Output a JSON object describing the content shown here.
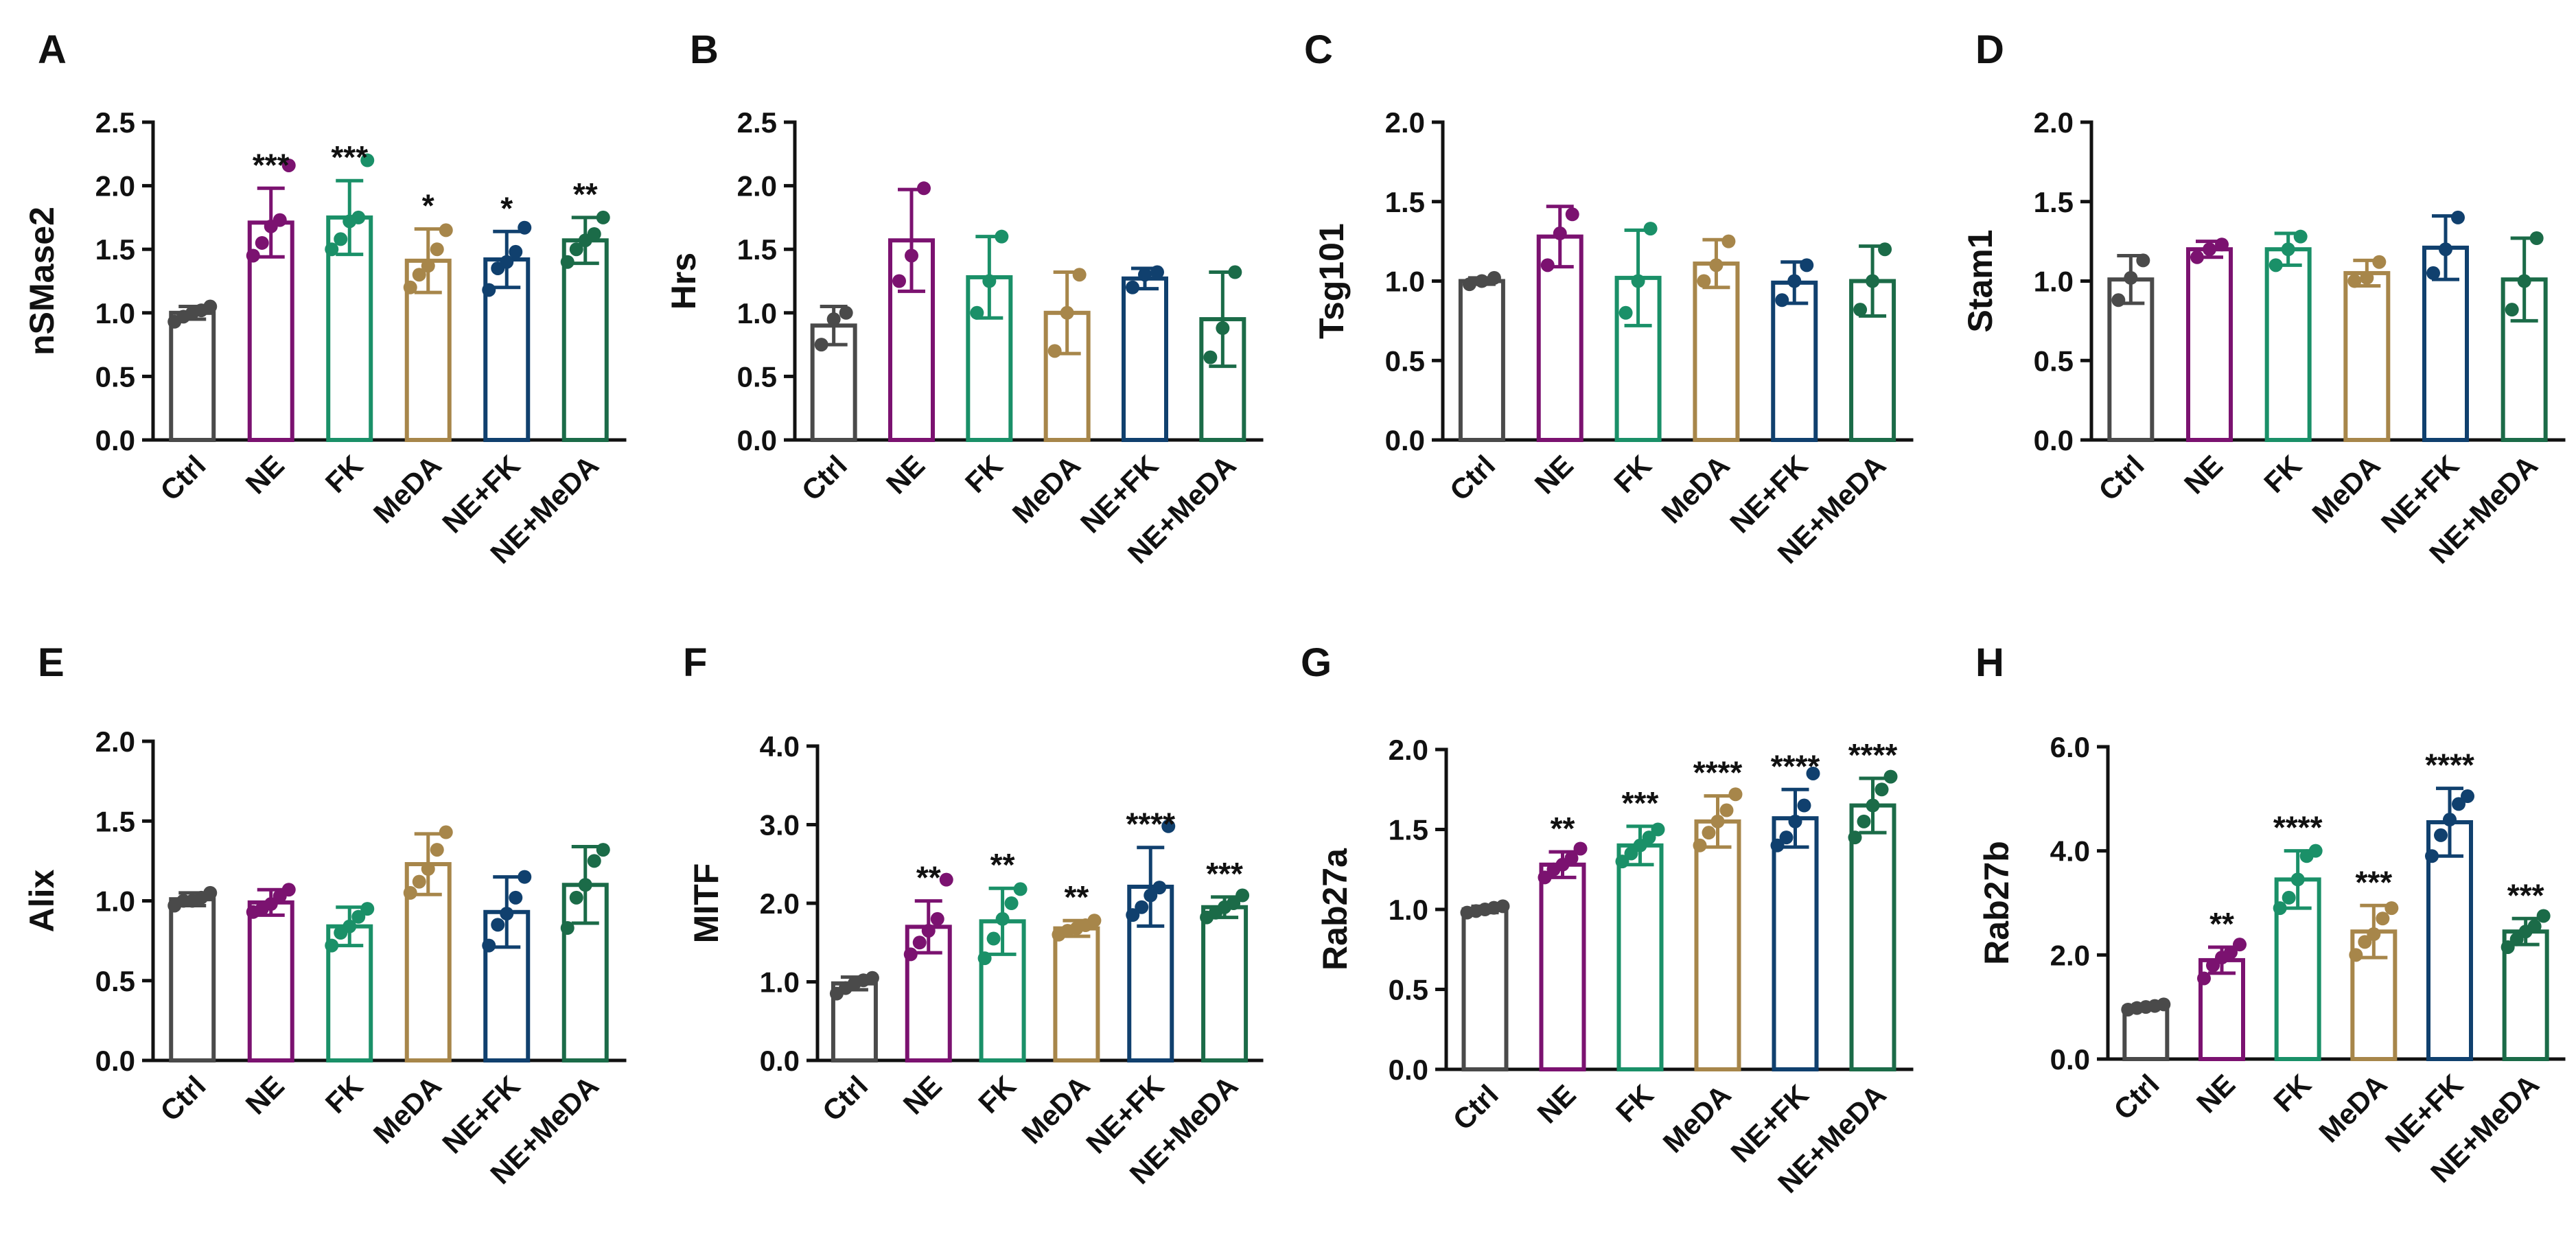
{
  "colors": {
    "Ctrl": "#4a4a4a",
    "NE": "#7b1270",
    "FK": "#1a9068",
    "MeDA": "#a7864a",
    "NE+FK": "#10406e",
    "NE+MeDA": "#1b6b48"
  },
  "chart_data": [
    {
      "panel": "A",
      "type": "bar",
      "ylabel": "nSMase2",
      "ylim": [
        0,
        2.5
      ],
      "ticks": [
        "0.0",
        "0.5",
        "1.0",
        "1.5",
        "2.0",
        "2.5"
      ],
      "categories": [
        "Ctrl",
        "NE",
        "FK",
        "MeDA",
        "NE+FK",
        "NE+MeDA"
      ],
      "values": [
        1.0,
        1.71,
        1.75,
        1.41,
        1.42,
        1.57
      ],
      "errors": [
        0.05,
        0.27,
        0.29,
        0.25,
        0.22,
        0.18
      ],
      "points": [
        [
          0.93,
          0.97,
          1.0,
          1.02,
          1.05
        ],
        [
          1.45,
          1.55,
          1.68,
          1.73,
          2.16
        ],
        [
          1.5,
          1.58,
          1.72,
          1.75,
          2.2
        ],
        [
          1.2,
          1.3,
          1.37,
          1.5,
          1.65
        ],
        [
          1.18,
          1.35,
          1.4,
          1.48,
          1.67
        ],
        [
          1.4,
          1.5,
          1.57,
          1.62,
          1.75
        ]
      ],
      "significance": [
        "",
        "***",
        "***",
        "*",
        "*",
        "**"
      ]
    },
    {
      "panel": "B",
      "type": "bar",
      "ylabel": "Hrs",
      "ylim": [
        0,
        2.5
      ],
      "ticks": [
        "0.0",
        "0.5",
        "1.0",
        "1.5",
        "2.0",
        "2.5"
      ],
      "categories": [
        "Ctrl",
        "NE",
        "FK",
        "MeDA",
        "NE+FK",
        "NE+MeDA"
      ],
      "values": [
        0.9,
        1.57,
        1.28,
        1.0,
        1.27,
        0.95
      ],
      "errors": [
        0.15,
        0.4,
        0.32,
        0.32,
        0.08,
        0.37
      ],
      "points": [
        [
          0.75,
          0.95,
          1.0
        ],
        [
          1.25,
          1.45,
          1.98
        ],
        [
          1.0,
          1.25,
          1.6
        ],
        [
          0.7,
          1.0,
          1.3
        ],
        [
          1.2,
          1.3,
          1.32
        ],
        [
          0.65,
          0.88,
          1.32
        ]
      ],
      "significance": [
        "",
        "",
        "",
        "",
        "",
        ""
      ]
    },
    {
      "panel": "C",
      "type": "bar",
      "ylabel": "Tsg101",
      "ylim": [
        0,
        2.0
      ],
      "ticks": [
        "0.0",
        "0.5",
        "1.0",
        "1.5",
        "2.0"
      ],
      "categories": [
        "Ctrl",
        "NE",
        "FK",
        "MeDA",
        "NE+FK",
        "NE+MeDA"
      ],
      "values": [
        1.0,
        1.28,
        1.02,
        1.11,
        0.99,
        1.0
      ],
      "errors": [
        0.02,
        0.19,
        0.3,
        0.15,
        0.13,
        0.22
      ],
      "points": [
        [
          0.98,
          1.0,
          1.02
        ],
        [
          1.1,
          1.3,
          1.42
        ],
        [
          0.8,
          1.0,
          1.33
        ],
        [
          1.0,
          1.1,
          1.25
        ],
        [
          0.88,
          1.0,
          1.1
        ],
        [
          0.82,
          1.0,
          1.2
        ]
      ],
      "significance": [
        "",
        "",
        "",
        "",
        "",
        ""
      ]
    },
    {
      "panel": "D",
      "type": "bar",
      "ylabel": "Stam1",
      "ylim": [
        0,
        2.0
      ],
      "ticks": [
        "0.0",
        "0.5",
        "1.0",
        "1.5",
        "2.0"
      ],
      "categories": [
        "Ctrl",
        "NE",
        "FK",
        "MeDA",
        "NE+FK",
        "NE+MeDA"
      ],
      "values": [
        1.01,
        1.2,
        1.2,
        1.05,
        1.21,
        1.01
      ],
      "errors": [
        0.15,
        0.05,
        0.1,
        0.08,
        0.2,
        0.26
      ],
      "points": [
        [
          0.88,
          1.02,
          1.13
        ],
        [
          1.15,
          1.2,
          1.23
        ],
        [
          1.1,
          1.2,
          1.28
        ],
        [
          1.0,
          1.02,
          1.12
        ],
        [
          1.05,
          1.2,
          1.4
        ],
        [
          0.82,
          1.0,
          1.27
        ]
      ],
      "significance": [
        "",
        "",
        "",
        "",
        "",
        ""
      ]
    },
    {
      "panel": "E",
      "type": "bar",
      "ylabel": "Alix",
      "ylim": [
        0,
        2.0
      ],
      "ticks": [
        "0.0",
        "0.5",
        "1.0",
        "1.5",
        "2.0"
      ],
      "categories": [
        "Ctrl",
        "NE",
        "FK",
        "MeDA",
        "NE+FK",
        "NE+MeDA"
      ],
      "values": [
        1.01,
        0.99,
        0.84,
        1.23,
        0.93,
        1.1
      ],
      "errors": [
        0.04,
        0.08,
        0.12,
        0.19,
        0.22,
        0.24
      ],
      "points": [
        [
          0.97,
          1.0,
          1.0,
          1.02,
          1.05
        ],
        [
          0.93,
          0.95,
          0.98,
          1.03,
          1.07
        ],
        [
          0.72,
          0.8,
          0.84,
          0.9,
          0.95
        ],
        [
          1.05,
          1.12,
          1.2,
          1.32,
          1.43
        ],
        [
          0.72,
          0.85,
          0.92,
          1.02,
          1.15
        ],
        [
          0.83,
          1.02,
          1.1,
          1.25,
          1.32
        ]
      ],
      "significance": [
        "",
        "",
        "",
        "",
        "",
        ""
      ]
    },
    {
      "panel": "F",
      "type": "bar",
      "ylabel": "MITF",
      "ylim": [
        0,
        4.0
      ],
      "ticks": [
        "0.0",
        "1.0",
        "2.0",
        "3.0",
        "4.0"
      ],
      "categories": [
        "Ctrl",
        "NE",
        "FK",
        "MeDA",
        "NE+FK",
        "NE+MeDA"
      ],
      "values": [
        0.98,
        1.7,
        1.77,
        1.68,
        2.21,
        1.95
      ],
      "errors": [
        0.08,
        0.33,
        0.42,
        0.1,
        0.5,
        0.13
      ],
      "points": [
        [
          0.85,
          0.92,
          0.98,
          1.02,
          1.05
        ],
        [
          1.35,
          1.5,
          1.65,
          1.8,
          2.3
        ],
        [
          1.3,
          1.55,
          1.8,
          2.0,
          2.18
        ],
        [
          1.6,
          1.65,
          1.68,
          1.72,
          1.78
        ],
        [
          1.85,
          1.95,
          2.1,
          2.2,
          2.98
        ],
        [
          1.82,
          1.88,
          1.95,
          2.0,
          2.1
        ]
      ],
      "significance": [
        "",
        "**",
        "**",
        "**",
        "****",
        "***"
      ]
    },
    {
      "panel": "G",
      "type": "bar",
      "ylabel": "Rab27a",
      "ylim": [
        0,
        2.0
      ],
      "ticks": [
        "0.0",
        "0.5",
        "1.0",
        "1.5",
        "2.0"
      ],
      "categories": [
        "Ctrl",
        "NE",
        "FK",
        "MeDA",
        "NE+FK",
        "NE+MeDA"
      ],
      "values": [
        1.0,
        1.28,
        1.4,
        1.55,
        1.57,
        1.65
      ],
      "errors": [
        0.02,
        0.08,
        0.12,
        0.16,
        0.18,
        0.17
      ],
      "points": [
        [
          0.98,
          0.99,
          1.0,
          1.01,
          1.02
        ],
        [
          1.2,
          1.25,
          1.28,
          1.32,
          1.38
        ],
        [
          1.3,
          1.35,
          1.4,
          1.45,
          1.5
        ],
        [
          1.4,
          1.48,
          1.55,
          1.62,
          1.72
        ],
        [
          1.4,
          1.45,
          1.55,
          1.65,
          1.85
        ],
        [
          1.45,
          1.55,
          1.65,
          1.75,
          1.83
        ]
      ],
      "significance": [
        "",
        "**",
        "***",
        "****",
        "****",
        "****"
      ]
    },
    {
      "panel": "H",
      "type": "bar",
      "ylabel": "Rab27b",
      "ylim": [
        0,
        6.0
      ],
      "ticks": [
        "0.0",
        "2.0",
        "4.0",
        "6.0"
      ],
      "categories": [
        "Ctrl",
        "NE",
        "FK",
        "MeDA",
        "NE+FK",
        "NE+MeDA"
      ],
      "values": [
        1.0,
        1.9,
        3.45,
        2.45,
        4.55,
        2.45
      ],
      "errors": [
        0.05,
        0.25,
        0.55,
        0.5,
        0.65,
        0.25
      ],
      "points": [
        [
          0.95,
          0.98,
          1.0,
          1.02,
          1.05
        ],
        [
          1.55,
          1.8,
          1.95,
          2.05,
          2.2
        ],
        [
          2.9,
          3.1,
          3.45,
          3.9,
          4.0
        ],
        [
          2.0,
          2.25,
          2.4,
          2.7,
          2.9
        ],
        [
          3.9,
          4.3,
          4.6,
          4.9,
          5.05
        ],
        [
          2.15,
          2.3,
          2.45,
          2.55,
          2.75
        ]
      ],
      "significance": [
        "",
        "**",
        "****",
        "***",
        "****",
        "***"
      ]
    }
  ]
}
